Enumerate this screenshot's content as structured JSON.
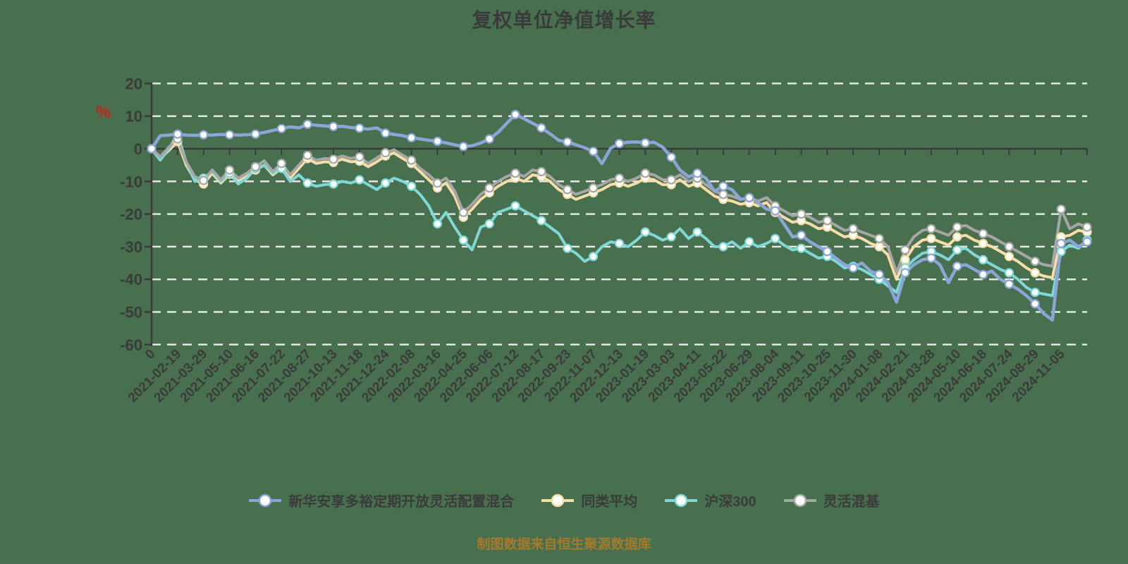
{
  "page": {
    "background_color": "#48704F"
  },
  "chart_data": {
    "type": "line",
    "title": "复权单位净值增长率",
    "source_note": "制图数据来自恒生聚源数据库",
    "xlabel": "",
    "ylabel": "%",
    "ylim": [
      -60,
      20
    ],
    "grid": "horizontal dashed",
    "legend_position": "bottom",
    "y_axis": {
      "unit": "%",
      "ticks": [
        20,
        10,
        0,
        -10,
        -20,
        -30,
        -40,
        -50,
        -60
      ]
    },
    "x_tick_labels": [
      "0",
      "2021-02-19",
      "2021-03-29",
      "2021-05-10",
      "2021-06-16",
      "2021-07-22",
      "2021-08-27",
      "2021-10-13",
      "2021-11-18",
      "2021-12-24",
      "2022-02-08",
      "2022-03-16",
      "2022-04-25",
      "2022-06-06",
      "2022-07-12",
      "2022-08-17",
      "2022-09-23",
      "2022-11-07",
      "2022-12-13",
      "2023-01-19",
      "2023-03-03",
      "2023-04-11",
      "2023-05-22",
      "2023-06-29",
      "2023-08-04",
      "2023-09-11",
      "2023-10-25",
      "2023-11-30",
      "2024-01-08",
      "2024-02-21",
      "2024-03-28",
      "2024-05-10",
      "2024-06-18",
      "2024-07-24",
      "2024-08-29",
      "2024-11-05"
    ],
    "sampling_note": "values are sampled at 1/3 of a tick interval starting at tick 0; every 3rd sample falls on a tick and carries a circle marker",
    "style": {
      "axis_color": "#3B3B3B",
      "grid_color": "#E5E5E5",
      "marker_fill": "#FFFFFF",
      "unit_color": "#C8251D",
      "note_color": "#A7792A",
      "text_color": "#3B3B3B"
    },
    "series": [
      {
        "key": "fund",
        "name": "新华安享多裕定期开放灵活配置混合",
        "color": "#8CA5D7",
        "values": [
          0,
          4,
          4.2,
          4.5,
          4.2,
          4.1,
          4.3,
          4.2,
          4.4,
          4.3,
          4.2,
          4.3,
          4.5,
          5,
          5.6,
          6.2,
          6.7,
          6.4,
          7.5,
          7.2,
          7,
          6.8,
          6.9,
          6.5,
          6.3,
          6,
          6.4,
          4.8,
          4.4,
          4,
          3.4,
          3,
          2.6,
          2.3,
          1.8,
          1.2,
          0.7,
          0.9,
          1.8,
          3,
          5,
          7.8,
          10.5,
          9.2,
          7.8,
          6.4,
          4.6,
          2.6,
          2.1,
          1.2,
          0.3,
          -0.8,
          -4.6,
          0.2,
          1.6,
          2,
          2.1,
          1.8,
          2,
          0.5,
          -2.6,
          -6.5,
          -8.6,
          -7.5,
          -9,
          -13,
          -11.5,
          -12.5,
          -15.5,
          -15,
          -16.5,
          -18.5,
          -19,
          -23,
          -27,
          -26.5,
          -28.5,
          -30,
          -31.5,
          -33.5,
          -35.5,
          -36.5,
          -35,
          -37.5,
          -38.5,
          -41,
          -47,
          -38,
          -35.5,
          -34,
          -33.5,
          -35.5,
          -41,
          -36,
          -35.5,
          -37,
          -38.5,
          -37.5,
          -40,
          -41.5,
          -43,
          -45,
          -47.5,
          -50.5,
          -52.5,
          -29,
          -28,
          -30,
          -28.5
        ]
      },
      {
        "key": "peer-average",
        "name": "同类平均",
        "color": "#F8DDA6",
        "values": [
          0,
          -3,
          -0.5,
          2.2,
          -5,
          -9.5,
          -10.8,
          -7.5,
          -10.5,
          -7.8,
          -10,
          -8.5,
          -6.5,
          -5,
          -8,
          -6,
          -9,
          -6,
          -3,
          -4.5,
          -4,
          -4.2,
          -3.2,
          -4,
          -3.8,
          -5.5,
          -4,
          -2.2,
          -1.3,
          -3,
          -4.5,
          -7,
          -9.5,
          -12,
          -10.5,
          -14.5,
          -21,
          -18.5,
          -15.5,
          -13.5,
          -11.5,
          -10,
          -9,
          -10,
          -8,
          -8.5,
          -10,
          -12.5,
          -14,
          -15.5,
          -14.5,
          -13.5,
          -12.5,
          -11,
          -10.5,
          -11.5,
          -10.5,
          -9,
          -9.5,
          -11,
          -11,
          -9.5,
          -11.5,
          -10.5,
          -12.5,
          -14.5,
          -15.5,
          -16,
          -17,
          -16.5,
          -17.5,
          -16.5,
          -19.5,
          -21,
          -22.5,
          -22,
          -23,
          -24.5,
          -24,
          -25.5,
          -27,
          -26.5,
          -27.5,
          -29,
          -30,
          -32.5,
          -40,
          -34,
          -30,
          -28,
          -27.5,
          -28.5,
          -29.5,
          -27,
          -26.5,
          -28,
          -29,
          -30,
          -31.5,
          -33,
          -34.5,
          -36.5,
          -38,
          -39,
          -39.5,
          -27,
          -26.5,
          -25,
          -25.5
        ]
      },
      {
        "key": "hs300",
        "name": "沪深300",
        "color": "#7FD8D8",
        "values": [
          0,
          -3.5,
          0,
          4.5,
          -4,
          -10,
          -9,
          -7,
          -10,
          -7.5,
          -10.8,
          -9,
          -6,
          -5,
          -7.5,
          -6,
          -10,
          -8,
          -10.5,
          -11.5,
          -11,
          -10.8,
          -10,
          -10.5,
          -9.5,
          -11,
          -12.5,
          -10.5,
          -9,
          -10,
          -11.5,
          -14,
          -17.5,
          -23,
          -19.5,
          -24,
          -28,
          -31,
          -24,
          -23,
          -19.5,
          -18.5,
          -17.5,
          -19,
          -20.5,
          -22,
          -24,
          -26,
          -30.5,
          -32,
          -34.5,
          -33,
          -30,
          -28.5,
          -29,
          -30,
          -28,
          -25.5,
          -26.5,
          -28,
          -27,
          -24.5,
          -27.5,
          -25.5,
          -27.5,
          -30,
          -30,
          -28.5,
          -30.5,
          -28.5,
          -30,
          -29,
          -27.5,
          -29.5,
          -31,
          -30.5,
          -32,
          -33.5,
          -33,
          -34.5,
          -36.5,
          -36,
          -37,
          -38.5,
          -40,
          -42,
          -44,
          -36.5,
          -34,
          -32,
          -31.5,
          -32.5,
          -34,
          -31,
          -30.5,
          -32.5,
          -34,
          -35.5,
          -37,
          -38,
          -40,
          -42.5,
          -44,
          -44.5,
          -45,
          -31.5,
          -29.5,
          -30.5,
          -28
        ]
      },
      {
        "key": "flexible-mixed",
        "name": "灵活混基",
        "color": "#A6A6A6",
        "values": [
          0,
          -2.5,
          0.5,
          3,
          -4,
          -8.5,
          -9.7,
          -6.5,
          -9.5,
          -6.5,
          -9,
          -7.5,
          -5.5,
          -3.7,
          -7,
          -4.5,
          -8,
          -5,
          -2,
          -3.5,
          -3,
          -3.2,
          -2.2,
          -3,
          -2.5,
          -4.5,
          -2.8,
          -1.2,
          -0.3,
          -2,
          -3.5,
          -6,
          -8,
          -10.5,
          -9,
          -13,
          -19.5,
          -17,
          -14,
          -12,
          -10,
          -8.5,
          -7.5,
          -8.5,
          -6.5,
          -7,
          -8.5,
          -11,
          -12.5,
          -14,
          -13,
          -12,
          -11,
          -9.5,
          -9,
          -10,
          -9,
          -7.5,
          -8,
          -9.5,
          -9.5,
          -8,
          -10,
          -9,
          -11,
          -13,
          -14,
          -14.5,
          -15.5,
          -15,
          -16,
          -15,
          -17.5,
          -19,
          -20.5,
          -20,
          -21,
          -22.5,
          -22,
          -23.5,
          -25,
          -24.5,
          -25.5,
          -26.5,
          -27.5,
          -30,
          -38,
          -31,
          -27,
          -25,
          -24.5,
          -25.5,
          -26.5,
          -24,
          -23.5,
          -25,
          -26,
          -27,
          -28.5,
          -30,
          -31.5,
          -33,
          -34.5,
          -35.5,
          -36,
          -18.5,
          -24.5,
          -23,
          -24
        ]
      }
    ]
  }
}
